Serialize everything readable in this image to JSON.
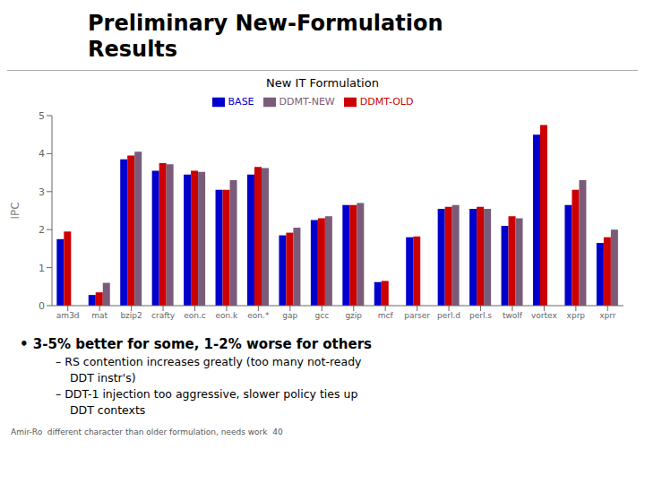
{
  "chart_data": {
    "type": "bar",
    "title": "New IT Formulation",
    "ylabel": "IPC",
    "categories": [
      "am3d",
      "mat",
      "bzip2",
      "crafty",
      "eon.c",
      "eon.k",
      "eon.*",
      "gap",
      "gcc",
      "gzip",
      "mcf",
      "parser",
      "perl.d",
      "perl.s",
      "twolf",
      "vortex",
      "xprp",
      "xprr"
    ],
    "series": [
      {
        "name": "BASE",
        "color": "#0000cc",
        "values": [
          1.75,
          0.28,
          3.85,
          3.55,
          3.45,
          3.05,
          3.45,
          1.85,
          2.25,
          2.65,
          0.62,
          1.8,
          2.55,
          2.55,
          2.1,
          4.5,
          2.65,
          1.65
        ]
      },
      {
        "name": "DDMT-OLD",
        "color": "#cc0000",
        "values": [
          1.95,
          0.35,
          3.95,
          3.75,
          3.55,
          3.05,
          3.65,
          1.92,
          2.3,
          2.65,
          0.65,
          1.82,
          2.6,
          2.6,
          2.35,
          4.75,
          3.05,
          1.8
        ]
      },
      {
        "name": "DDMT-NEW",
        "color": "#7a5c7a",
        "values": [
          0.0,
          0.6,
          4.05,
          3.72,
          3.52,
          3.3,
          3.62,
          2.05,
          2.35,
          2.7,
          0.0,
          0.0,
          2.65,
          2.55,
          2.3,
          0.0,
          3.3,
          2.0
        ]
      }
    ],
    "ylim": [
      0,
      5
    ],
    "yticks": [
      0,
      1,
      2,
      3,
      4,
      5
    ],
    "grid": false,
    "legend": "top",
    "annotations": [
      "Preliminary New-Formulation",
      "Results",
      "• 3-5% better for some, 1-2% worse for others",
      "– RS contention increases greatly (too many not-ready",
      "    DDT instr's)",
      "– DDT-1 injection too aggressive, slower policy ties up",
      "    DDT contexts",
      "Amir-Ro  different character than older formulation, needs work  40"
    ]
  }
}
